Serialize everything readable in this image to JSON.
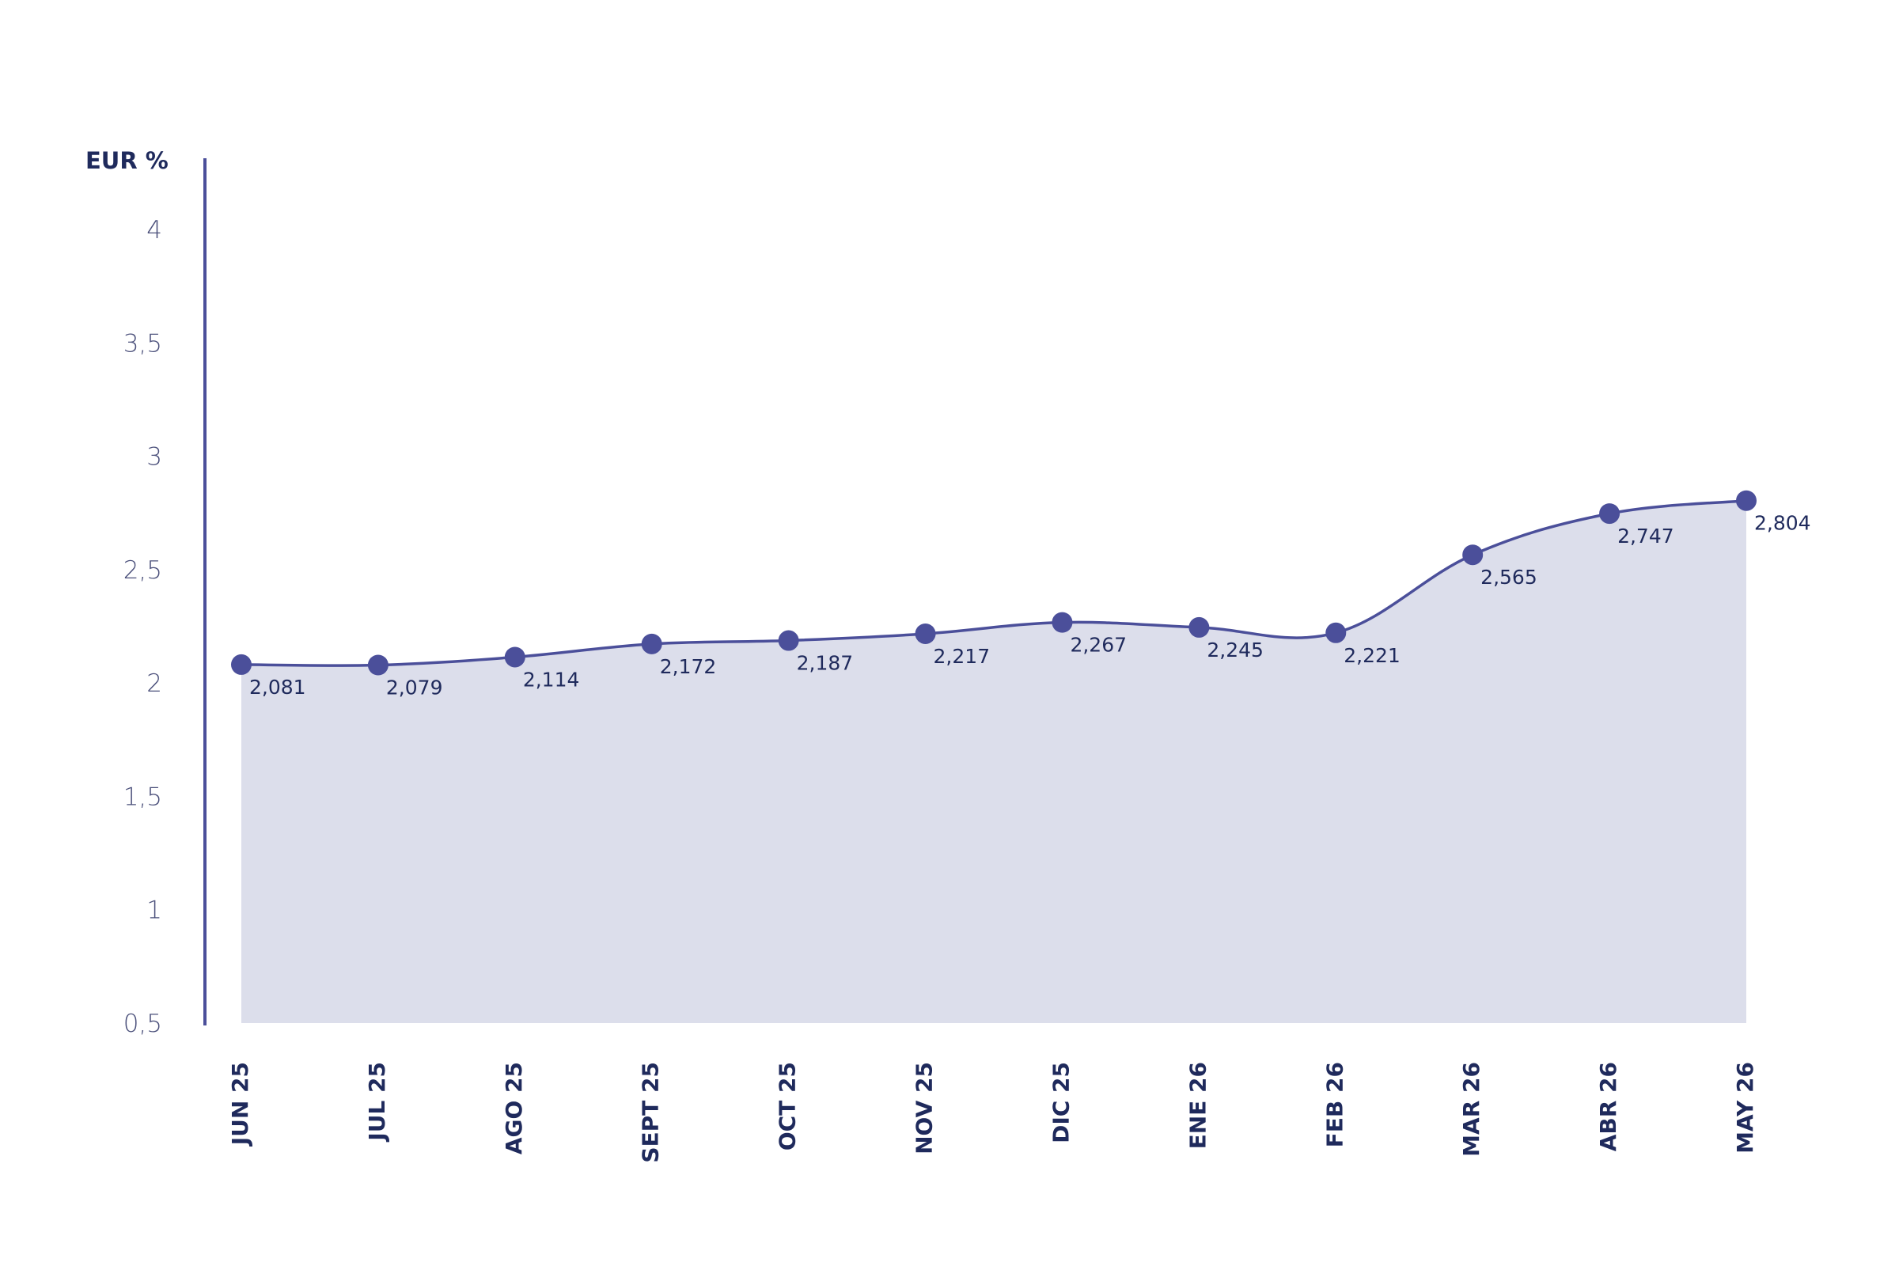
{
  "chart_data": {
    "type": "area",
    "ylabel": "EUR %",
    "ylim": [
      0.5,
      4
    ],
    "y_ticks": [
      "0,5",
      "1",
      "1,5",
      "2",
      "2,5",
      "3",
      "3,5",
      "4"
    ],
    "y_tick_values": [
      0.5,
      1,
      1.5,
      2,
      2.5,
      3,
      3.5,
      4
    ],
    "categories": [
      "JUN 25",
      "JUL 25",
      "AGO 25",
      "SEPT 25",
      "OCT 25",
      "NOV 25",
      "DIC 25",
      "ENE 26",
      "FEB 26",
      "MAR 26",
      "ABR 26",
      "MAY 26"
    ],
    "series": [
      {
        "values": [
          2.081,
          2.079,
          2.114,
          2.172,
          2.187,
          2.217,
          2.267,
          2.245,
          2.221,
          2.565,
          2.747,
          2.804
        ],
        "labels": [
          "2,081",
          "2,079",
          "2,114",
          "2,172",
          "2,187",
          "2,217",
          "2,267",
          "2,245",
          "2,221",
          "2,565",
          "2,747",
          "2,804"
        ]
      }
    ],
    "grid": false,
    "colors": {
      "line": "#4b4f9a",
      "area": "#dcdeeb",
      "axis": "#4b4f9a",
      "text": "#1f2a5c"
    }
  }
}
